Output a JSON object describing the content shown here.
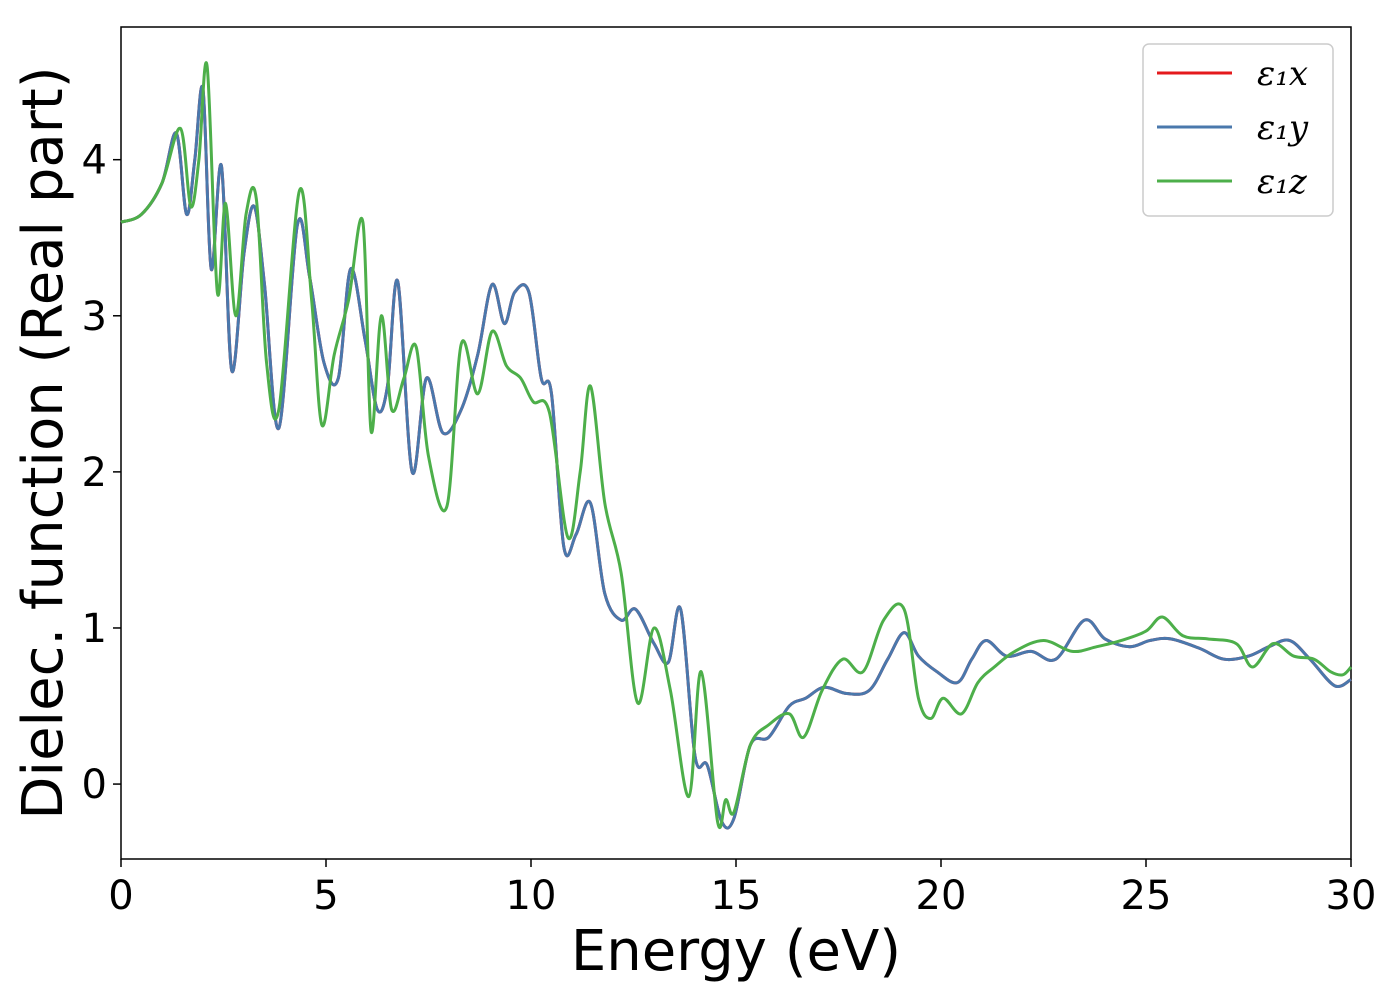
{
  "chart_data": {
    "type": "line",
    "xlabel": "Energy (eV)",
    "ylabel": "Dielec. function (Real part)",
    "xlim": [
      0,
      30
    ],
    "ylim": [
      -0.48,
      4.85
    ],
    "xticks": [
      0,
      5,
      10,
      15,
      20,
      25,
      30
    ],
    "yticks": [
      0,
      1,
      2,
      3,
      4
    ],
    "grid": false,
    "legend_position": "top-right",
    "series": [
      {
        "name": "ε₁x",
        "color": "#e41a1c",
        "x": [
          0,
          0.5,
          1.0,
          1.35,
          1.6,
          1.8,
          2.0,
          2.2,
          2.45,
          2.7,
          3.0,
          3.25,
          3.5,
          3.85,
          4.3,
          4.6,
          4.95,
          5.3,
          5.6,
          5.95,
          6.25,
          6.5,
          6.75,
          7.1,
          7.45,
          7.85,
          8.3,
          8.7,
          9.05,
          9.35,
          9.6,
          9.95,
          10.25,
          10.5,
          10.8,
          11.1,
          11.45,
          11.8,
          12.2,
          12.55,
          13.0,
          13.35,
          13.65,
          14.0,
          14.3,
          14.65,
          14.95,
          15.35,
          15.8,
          16.3,
          16.7,
          17.15,
          17.7,
          18.25,
          18.7,
          19.1,
          19.45,
          19.9,
          20.4,
          20.75,
          21.1,
          21.6,
          22.2,
          22.8,
          23.5,
          24.0,
          24.6,
          25.1,
          25.6,
          26.3,
          26.9,
          27.5,
          28.0,
          28.5,
          29.0,
          29.6,
          30.0
        ],
        "y": [
          3.6,
          3.65,
          3.85,
          4.17,
          3.65,
          4.0,
          4.45,
          3.3,
          3.96,
          2.65,
          3.4,
          3.7,
          3.2,
          2.28,
          3.58,
          3.25,
          2.7,
          2.6,
          3.3,
          2.85,
          2.4,
          2.55,
          3.22,
          2.0,
          2.6,
          2.25,
          2.4,
          2.75,
          3.2,
          2.95,
          3.15,
          3.15,
          2.6,
          2.5,
          1.52,
          1.6,
          1.8,
          1.22,
          1.05,
          1.12,
          0.9,
          0.78,
          1.12,
          0.18,
          0.12,
          -0.24,
          -0.22,
          0.25,
          0.3,
          0.5,
          0.55,
          0.62,
          0.58,
          0.6,
          0.8,
          0.97,
          0.82,
          0.72,
          0.65,
          0.8,
          0.92,
          0.82,
          0.85,
          0.8,
          1.05,
          0.93,
          0.88,
          0.92,
          0.93,
          0.87,
          0.8,
          0.82,
          0.88,
          0.92,
          0.8,
          0.63,
          0.67
        ]
      },
      {
        "name": "ε₁y",
        "color": "#4a78ac",
        "x": [
          0,
          0.5,
          1.0,
          1.35,
          1.6,
          1.8,
          2.0,
          2.2,
          2.45,
          2.7,
          3.0,
          3.25,
          3.5,
          3.85,
          4.3,
          4.6,
          4.95,
          5.3,
          5.6,
          5.95,
          6.25,
          6.5,
          6.75,
          7.1,
          7.45,
          7.85,
          8.3,
          8.7,
          9.05,
          9.35,
          9.6,
          9.95,
          10.25,
          10.5,
          10.8,
          11.1,
          11.45,
          11.8,
          12.2,
          12.55,
          13.0,
          13.35,
          13.65,
          14.0,
          14.3,
          14.65,
          14.95,
          15.35,
          15.8,
          16.3,
          16.7,
          17.15,
          17.7,
          18.25,
          18.7,
          19.1,
          19.45,
          19.9,
          20.4,
          20.75,
          21.1,
          21.6,
          22.2,
          22.8,
          23.5,
          24.0,
          24.6,
          25.1,
          25.6,
          26.3,
          26.9,
          27.5,
          28.0,
          28.5,
          29.0,
          29.6,
          30.0
        ],
        "y": [
          3.6,
          3.65,
          3.85,
          4.17,
          3.65,
          4.0,
          4.45,
          3.3,
          3.96,
          2.65,
          3.4,
          3.7,
          3.2,
          2.28,
          3.58,
          3.25,
          2.7,
          2.6,
          3.3,
          2.85,
          2.4,
          2.55,
          3.22,
          2.0,
          2.6,
          2.25,
          2.4,
          2.75,
          3.2,
          2.95,
          3.15,
          3.15,
          2.6,
          2.5,
          1.52,
          1.6,
          1.8,
          1.22,
          1.05,
          1.12,
          0.9,
          0.78,
          1.12,
          0.18,
          0.12,
          -0.24,
          -0.22,
          0.25,
          0.3,
          0.5,
          0.55,
          0.62,
          0.58,
          0.6,
          0.8,
          0.97,
          0.82,
          0.72,
          0.65,
          0.8,
          0.92,
          0.82,
          0.85,
          0.8,
          1.05,
          0.93,
          0.88,
          0.92,
          0.93,
          0.87,
          0.8,
          0.82,
          0.88,
          0.92,
          0.8,
          0.63,
          0.67
        ]
      },
      {
        "name": "ε₁z",
        "color": "#4daf4a",
        "x": [
          0,
          0.5,
          1.0,
          1.45,
          1.7,
          1.9,
          2.1,
          2.35,
          2.55,
          2.8,
          3.05,
          3.3,
          3.55,
          3.85,
          4.35,
          4.65,
          4.9,
          5.2,
          5.55,
          5.9,
          6.1,
          6.35,
          6.6,
          6.9,
          7.2,
          7.5,
          7.95,
          8.3,
          8.7,
          9.05,
          9.4,
          9.75,
          10.05,
          10.45,
          10.9,
          11.2,
          11.45,
          11.8,
          12.2,
          12.6,
          13.0,
          13.4,
          13.85,
          14.15,
          14.55,
          14.75,
          14.95,
          15.35,
          15.8,
          16.3,
          16.65,
          17.1,
          17.6,
          18.1,
          18.6,
          19.1,
          19.45,
          19.75,
          20.05,
          20.5,
          20.9,
          21.3,
          21.8,
          22.5,
          23.2,
          23.8,
          24.4,
          25.0,
          25.4,
          25.9,
          26.5,
          27.2,
          27.6,
          28.1,
          28.6,
          29.1,
          29.5,
          29.8,
          30.0
        ],
        "y": [
          3.6,
          3.65,
          3.85,
          4.2,
          3.7,
          4.0,
          4.6,
          3.15,
          3.72,
          3.0,
          3.65,
          3.75,
          2.7,
          2.4,
          3.8,
          3.1,
          2.3,
          2.75,
          3.1,
          3.6,
          2.26,
          3.0,
          2.4,
          2.6,
          2.8,
          2.1,
          1.78,
          2.82,
          2.5,
          2.9,
          2.68,
          2.6,
          2.45,
          2.38,
          1.58,
          2.0,
          2.55,
          1.8,
          1.35,
          0.52,
          1.0,
          0.6,
          -0.08,
          0.72,
          -0.24,
          -0.1,
          -0.18,
          0.25,
          0.38,
          0.45,
          0.3,
          0.6,
          0.8,
          0.72,
          1.05,
          1.12,
          0.55,
          0.42,
          0.55,
          0.45,
          0.65,
          0.75,
          0.85,
          0.92,
          0.85,
          0.88,
          0.92,
          0.98,
          1.07,
          0.95,
          0.93,
          0.9,
          0.75,
          0.9,
          0.82,
          0.8,
          0.72,
          0.7,
          0.75
        ]
      }
    ]
  }
}
